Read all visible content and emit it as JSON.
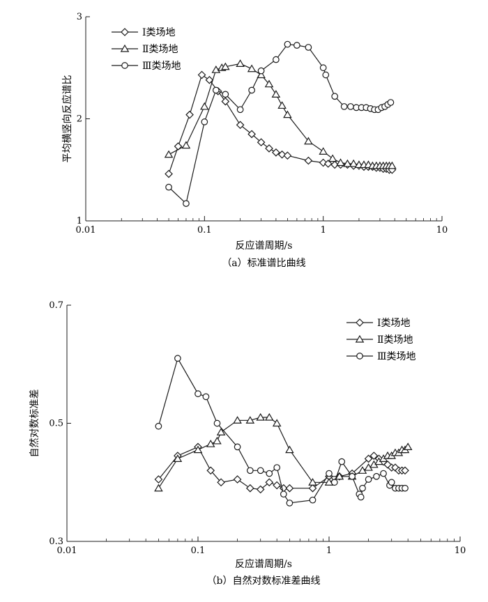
{
  "chart_data": [
    {
      "type": "line",
      "caption": "（a）标准谱比曲线",
      "xlabel": "反应谱周期/s",
      "ylabel": "平均横竖向反应谱比",
      "xscale": "log",
      "xlim": [
        0.01,
        10
      ],
      "ylim": [
        1,
        3
      ],
      "xticks": [
        0.01,
        0.1,
        1,
        10
      ],
      "xtick_labels": [
        "0.01",
        "0.1",
        "1",
        "10"
      ],
      "yticks": [
        1,
        2,
        3
      ],
      "ytick_labels": [
        "1",
        "2",
        "3"
      ],
      "grid": false,
      "legend_position": "top-left",
      "series": [
        {
          "name": "Ⅰ类场地",
          "marker": "diamond",
          "x": [
            0.05,
            0.06,
            0.075,
            0.095,
            0.11,
            0.13,
            0.15,
            0.2,
            0.25,
            0.3,
            0.35,
            0.4,
            0.45,
            0.5,
            0.75,
            1.0,
            1.1,
            1.25,
            1.4,
            1.6,
            1.8,
            2.0,
            2.2,
            2.4,
            2.6,
            2.8,
            3.0,
            3.2,
            3.4,
            3.6,
            3.8
          ],
          "y": [
            1.46,
            1.73,
            2.04,
            2.43,
            2.38,
            2.27,
            2.17,
            1.94,
            1.85,
            1.77,
            1.71,
            1.67,
            1.65,
            1.64,
            1.59,
            1.57,
            1.56,
            1.55,
            1.55,
            1.55,
            1.54,
            1.54,
            1.53,
            1.53,
            1.53,
            1.52,
            1.52,
            1.51,
            1.51,
            1.5,
            1.5
          ]
        },
        {
          "name": "Ⅱ类场地",
          "marker": "triangle",
          "x": [
            0.05,
            0.07,
            0.1,
            0.125,
            0.14,
            0.15,
            0.2,
            0.25,
            0.3,
            0.35,
            0.4,
            0.45,
            0.5,
            0.75,
            1.0,
            1.2,
            1.4,
            1.6,
            1.8,
            2.0,
            2.2,
            2.4,
            2.6,
            2.8,
            3.0,
            3.2,
            3.4,
            3.6,
            3.8
          ],
          "y": [
            1.65,
            1.74,
            2.12,
            2.48,
            2.5,
            2.51,
            2.54,
            2.49,
            2.43,
            2.34,
            2.24,
            2.13,
            2.04,
            1.78,
            1.68,
            1.61,
            1.57,
            1.56,
            1.56,
            1.55,
            1.55,
            1.55,
            1.54,
            1.54,
            1.54,
            1.54,
            1.54,
            1.54,
            1.54
          ]
        },
        {
          "name": "Ⅲ类场地",
          "marker": "circle",
          "x": [
            0.05,
            0.07,
            0.1,
            0.125,
            0.15,
            0.2,
            0.25,
            0.3,
            0.4,
            0.5,
            0.6,
            0.75,
            1.0,
            1.05,
            1.25,
            1.5,
            1.7,
            1.9,
            2.1,
            2.3,
            2.5,
            2.7,
            2.9,
            3.1,
            3.3,
            3.5,
            3.7
          ],
          "y": [
            1.33,
            1.17,
            1.97,
            2.28,
            2.24,
            2.09,
            2.28,
            2.47,
            2.58,
            2.73,
            2.72,
            2.7,
            2.5,
            2.43,
            2.22,
            2.12,
            2.12,
            2.11,
            2.11,
            2.11,
            2.1,
            2.09,
            2.09,
            2.11,
            2.12,
            2.14,
            2.16
          ]
        }
      ]
    },
    {
      "type": "line",
      "caption": "（b）自然对数标准差曲线",
      "xlabel": "反应谱周期/s",
      "ylabel": "自然对数标准差",
      "xscale": "log",
      "xlim": [
        0.01,
        10
      ],
      "ylim": [
        0.3,
        0.7
      ],
      "xticks": [
        0.01,
        0.1,
        1,
        10
      ],
      "xtick_labels": [
        "0.01",
        "0.1",
        "1",
        "10"
      ],
      "yticks": [
        0.3,
        0.5,
        0.7
      ],
      "ytick_labels": [
        "0.3",
        "0.5",
        "0.7"
      ],
      "grid": false,
      "legend_position": "top-right",
      "series": [
        {
          "name": "Ⅰ类场地",
          "marker": "diamond",
          "x": [
            0.05,
            0.07,
            0.1,
            0.125,
            0.15,
            0.2,
            0.25,
            0.3,
            0.35,
            0.4,
            0.45,
            0.5,
            0.75,
            1.0,
            1.2,
            1.5,
            2.0,
            2.2,
            2.4,
            2.6,
            2.8,
            3.0,
            3.2,
            3.4,
            3.6,
            3.8
          ],
          "y": [
            0.405,
            0.445,
            0.46,
            0.42,
            0.4,
            0.405,
            0.39,
            0.388,
            0.4,
            0.395,
            0.39,
            0.39,
            0.39,
            0.41,
            0.41,
            0.415,
            0.44,
            0.445,
            0.44,
            0.435,
            0.43,
            0.425,
            0.425,
            0.42,
            0.42,
            0.42
          ]
        },
        {
          "name": "Ⅱ类场地",
          "marker": "triangle",
          "x": [
            0.05,
            0.07,
            0.1,
            0.125,
            0.14,
            0.15,
            0.2,
            0.25,
            0.3,
            0.35,
            0.4,
            0.5,
            0.75,
            1.0,
            1.2,
            1.5,
            1.8,
            2.0,
            2.2,
            2.4,
            2.6,
            2.8,
            3.0,
            3.2,
            3.4,
            3.6,
            3.8,
            4.0
          ],
          "y": [
            0.39,
            0.44,
            0.455,
            0.465,
            0.47,
            0.485,
            0.505,
            0.505,
            0.51,
            0.51,
            0.5,
            0.455,
            0.4,
            0.4,
            0.41,
            0.41,
            0.42,
            0.425,
            0.43,
            0.435,
            0.44,
            0.445,
            0.445,
            0.45,
            0.45,
            0.455,
            0.455,
            0.46
          ]
        },
        {
          "name": "Ⅲ类场地",
          "marker": "circle",
          "x": [
            0.05,
            0.07,
            0.1,
            0.115,
            0.14,
            0.2,
            0.25,
            0.3,
            0.35,
            0.4,
            0.45,
            0.5,
            0.75,
            1.0,
            1.1,
            1.25,
            1.5,
            1.7,
            1.75,
            1.8,
            2.0,
            2.3,
            2.6,
            2.9,
            3.0,
            3.2,
            3.4,
            3.6,
            3.8
          ],
          "y": [
            0.495,
            0.61,
            0.55,
            0.545,
            0.5,
            0.46,
            0.42,
            0.42,
            0.415,
            0.425,
            0.38,
            0.365,
            0.37,
            0.415,
            0.4,
            0.435,
            0.41,
            0.38,
            0.375,
            0.39,
            0.405,
            0.41,
            0.415,
            0.395,
            0.4,
            0.39,
            0.39,
            0.39,
            0.39
          ]
        }
      ]
    }
  ]
}
